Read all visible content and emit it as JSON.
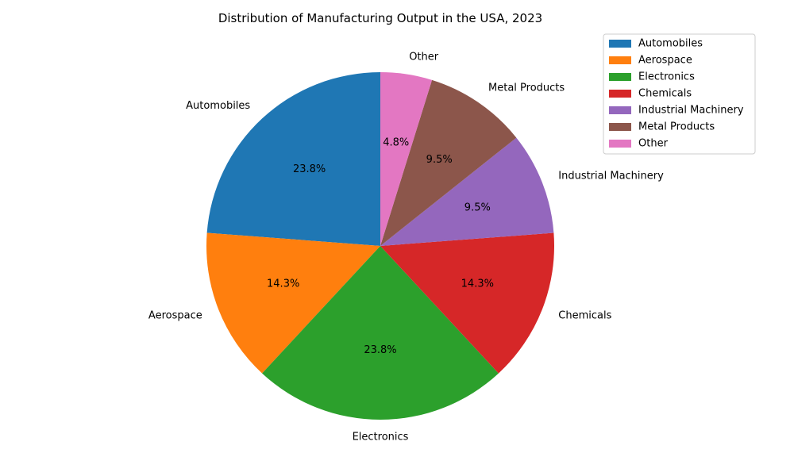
{
  "chart_data": {
    "type": "pie",
    "title": "Distribution of Manufacturing Output in the USA, 2023",
    "start_angle_deg": 90,
    "direction": "counterclockwise",
    "legend_position": "top-right",
    "slices": [
      {
        "label": "Automobiles",
        "value": 23.8,
        "pct_text": "23.8%",
        "color": "#1f77b4"
      },
      {
        "label": "Aerospace",
        "value": 14.3,
        "pct_text": "14.3%",
        "color": "#ff7f0e"
      },
      {
        "label": "Electronics",
        "value": 23.8,
        "pct_text": "23.8%",
        "color": "#2ca02c"
      },
      {
        "label": "Chemicals",
        "value": 14.3,
        "pct_text": "14.3%",
        "color": "#d62728"
      },
      {
        "label": "Industrial Machinery",
        "value": 9.5,
        "pct_text": "9.5%",
        "color": "#9467bd"
      },
      {
        "label": "Metal Products",
        "value": 9.5,
        "pct_text": "9.5%",
        "color": "#8c564b"
      },
      {
        "label": "Other",
        "value": 4.8,
        "pct_text": "4.8%",
        "color": "#e377c2"
      }
    ]
  }
}
